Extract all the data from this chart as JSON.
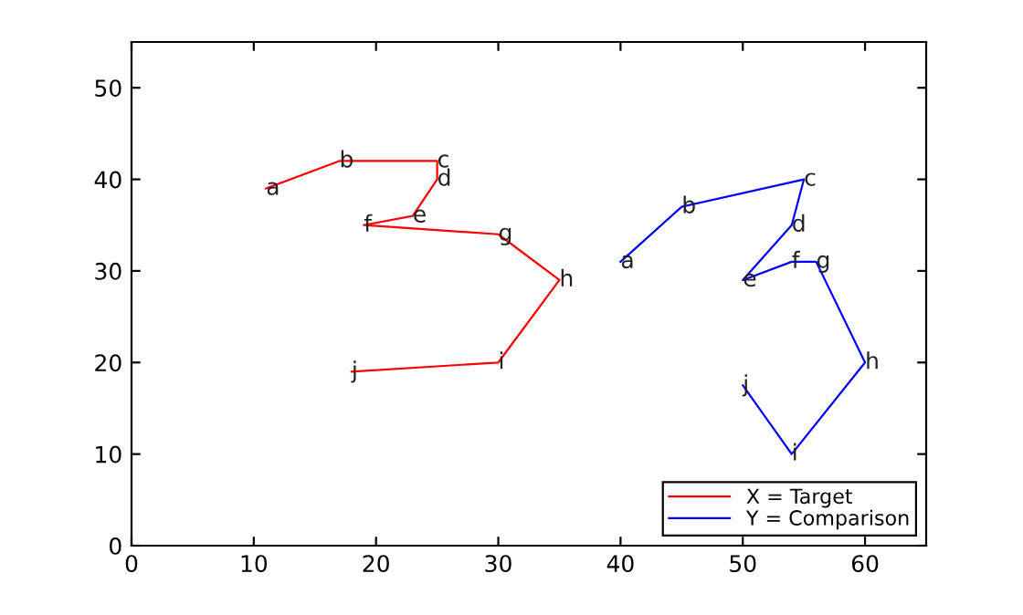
{
  "chart_data": {
    "type": "line",
    "series": [
      {
        "name": "X = Target",
        "color": "#ff0000",
        "x": [
          11,
          17,
          25,
          25,
          23,
          19,
          30,
          35,
          30,
          18
        ],
        "values": [
          39,
          42,
          42,
          40,
          36,
          35,
          34,
          29,
          20,
          19
        ]
      },
      {
        "name": "Y = Comparison",
        "color": "#0000ff",
        "x": [
          40,
          45,
          55,
          54,
          50,
          54,
          56,
          60,
          54,
          50
        ],
        "values": [
          31,
          37,
          40,
          35,
          29,
          31,
          31,
          20,
          10,
          17.5
        ]
      }
    ],
    "annotations": [
      {
        "text": "a",
        "x": 11,
        "y": 39
      },
      {
        "text": "b",
        "x": 17,
        "y": 42
      },
      {
        "text": "c",
        "x": 25,
        "y": 42
      },
      {
        "text": "d",
        "x": 25,
        "y": 40
      },
      {
        "text": "e",
        "x": 23,
        "y": 36
      },
      {
        "text": "f",
        "x": 19,
        "y": 35
      },
      {
        "text": "g",
        "x": 30,
        "y": 34
      },
      {
        "text": "h",
        "x": 35,
        "y": 29
      },
      {
        "text": "i",
        "x": 30,
        "y": 20
      },
      {
        "text": "j",
        "x": 18,
        "y": 19
      },
      {
        "text": "a",
        "x": 40,
        "y": 31
      },
      {
        "text": "b",
        "x": 45,
        "y": 37
      },
      {
        "text": "c",
        "x": 55,
        "y": 40
      },
      {
        "text": "d",
        "x": 54,
        "y": 35
      },
      {
        "text": "e",
        "x": 50,
        "y": 29
      },
      {
        "text": "f",
        "x": 54,
        "y": 31
      },
      {
        "text": "g",
        "x": 56,
        "y": 31
      },
      {
        "text": "h",
        "x": 60,
        "y": 20
      },
      {
        "text": "i",
        "x": 54,
        "y": 10
      },
      {
        "text": "j",
        "x": 50,
        "y": 17.5
      }
    ],
    "xlim": [
      0,
      65
    ],
    "ylim": [
      0,
      55
    ],
    "xticks": [
      0,
      10,
      20,
      30,
      40,
      50,
      60
    ],
    "yticks": [
      0,
      10,
      20,
      30,
      40,
      50
    ],
    "grid": false,
    "legend": "bottom right",
    "marker": "none",
    "line_style": "solid"
  }
}
